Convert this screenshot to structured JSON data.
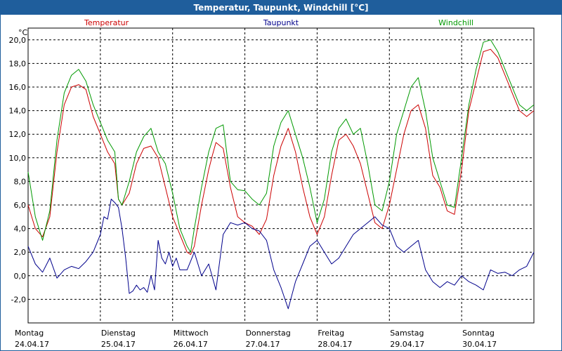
{
  "window": {
    "title": "Temperatur, Taupunkt, Windchill [°C]"
  },
  "chart_data": {
    "type": "line",
    "title": "Temperatur, Taupunkt, Windchill [°C]",
    "ylabel": "°C",
    "ylim": [
      -4,
      21
    ],
    "xlim": [
      0,
      7
    ],
    "grid": true,
    "yticks": [
      {
        "value": 20,
        "label": "20,0"
      },
      {
        "value": 18,
        "label": "18,0"
      },
      {
        "value": 16,
        "label": "16,0"
      },
      {
        "value": 14,
        "label": "14,0"
      },
      {
        "value": 12,
        "label": "12,0"
      },
      {
        "value": 10,
        "label": "10,0"
      },
      {
        "value": 8,
        "label": "8,0"
      },
      {
        "value": 6,
        "label": "6,0"
      },
      {
        "value": 4,
        "label": "4,0"
      },
      {
        "value": 2,
        "label": "2,0"
      },
      {
        "value": 0,
        "label": "0,0"
      },
      {
        "value": -2,
        "label": "-2,0"
      }
    ],
    "xticks": [
      {
        "value": 0,
        "day": "Montag",
        "date": "24.04.17"
      },
      {
        "value": 1,
        "day": "Dienstag",
        "date": "25.04.17"
      },
      {
        "value": 2,
        "day": "Mittwoch",
        "date": "26.04.17"
      },
      {
        "value": 3,
        "day": "Donnerstag",
        "date": "27.04.17"
      },
      {
        "value": 4,
        "day": "Freitag",
        "date": "28.04.17"
      },
      {
        "value": 5,
        "day": "Samstag",
        "date": "29.04.17"
      },
      {
        "value": 6,
        "day": "Sonntag",
        "date": "30.04.17"
      }
    ],
    "series": [
      {
        "name": "Temperatur",
        "color": "#cc0000",
        "x": [
          0,
          0.1,
          0.2,
          0.3,
          0.4,
          0.5,
          0.6,
          0.7,
          0.8,
          0.9,
          1.0,
          1.1,
          1.2,
          1.25,
          1.3,
          1.4,
          1.5,
          1.6,
          1.7,
          1.8,
          1.9,
          2.0,
          2.1,
          2.2,
          2.25,
          2.3,
          2.4,
          2.5,
          2.55,
          2.6,
          2.7,
          2.8,
          2.9,
          3.0,
          3.1,
          3.2,
          3.3,
          3.4,
          3.5,
          3.6,
          3.7,
          3.8,
          3.9,
          4.0,
          4.1,
          4.2,
          4.3,
          4.4,
          4.5,
          4.6,
          4.7,
          4.8,
          4.9,
          5.0,
          5.1,
          5.2,
          5.3,
          5.4,
          5.5,
          5.6,
          5.7,
          5.8,
          5.9,
          6.0,
          6.1,
          6.2,
          6.3,
          6.4,
          6.5,
          6.6,
          6.7,
          6.8,
          6.9,
          7.0
        ],
        "values": [
          6.0,
          4.0,
          3.3,
          5.0,
          10.5,
          14.5,
          16.0,
          16.2,
          15.8,
          13.5,
          12.0,
          10.5,
          9.5,
          6.5,
          6.0,
          7.0,
          9.5,
          10.8,
          11.0,
          10.0,
          7.5,
          5.0,
          3.5,
          2.0,
          1.8,
          2.5,
          6.0,
          9.0,
          10.2,
          11.3,
          10.8,
          7.5,
          5.0,
          4.5,
          4.2,
          3.5,
          4.8,
          8.5,
          11.0,
          12.5,
          10.5,
          7.5,
          5.0,
          3.5,
          5.0,
          8.5,
          11.5,
          12.0,
          11.0,
          9.5,
          7.0,
          4.5,
          4.0,
          6.0,
          9.0,
          12.0,
          14.0,
          14.5,
          12.5,
          8.5,
          7.5,
          5.5,
          5.2,
          9.0,
          14.0,
          16.5,
          19.0,
          19.2,
          18.5,
          17.0,
          15.5,
          14.0,
          13.5,
          14.0
        ]
      },
      {
        "name": "Taupunkt",
        "color": "#00008b",
        "x": [
          0,
          0.1,
          0.2,
          0.3,
          0.4,
          0.5,
          0.6,
          0.7,
          0.8,
          0.9,
          1.0,
          1.05,
          1.1,
          1.15,
          1.2,
          1.25,
          1.3,
          1.35,
          1.4,
          1.45,
          1.5,
          1.55,
          1.6,
          1.65,
          1.7,
          1.75,
          1.8,
          1.85,
          1.9,
          1.95,
          2.0,
          2.05,
          2.1,
          2.2,
          2.3,
          2.4,
          2.5,
          2.6,
          2.7,
          2.8,
          2.9,
          3.0,
          3.1,
          3.2,
          3.3,
          3.4,
          3.5,
          3.6,
          3.7,
          3.8,
          3.9,
          4.0,
          4.1,
          4.2,
          4.3,
          4.4,
          4.5,
          4.6,
          4.7,
          4.8,
          4.9,
          5.0,
          5.1,
          5.2,
          5.3,
          5.4,
          5.5,
          5.6,
          5.7,
          5.8,
          5.9,
          6.0,
          6.1,
          6.2,
          6.3,
          6.4,
          6.5,
          6.6,
          6.7,
          6.8,
          6.9,
          7.0
        ],
        "values": [
          2.5,
          1.0,
          0.3,
          1.5,
          -0.2,
          0.5,
          0.8,
          0.6,
          1.2,
          2.0,
          3.5,
          5.0,
          4.8,
          6.5,
          6.2,
          5.8,
          4.0,
          1.5,
          -1.5,
          -1.3,
          -0.8,
          -1.2,
          -1.0,
          -1.4,
          0.0,
          -1.2,
          3.0,
          1.5,
          1.0,
          2.0,
          0.8,
          1.5,
          0.5,
          0.5,
          2.0,
          0.0,
          1.0,
          -1.2,
          3.5,
          4.5,
          4.3,
          4.5,
          4.0,
          3.8,
          3.0,
          0.5,
          -1.0,
          -2.8,
          -0.5,
          1.0,
          2.5,
          3.0,
          2.0,
          1.0,
          1.5,
          2.5,
          3.5,
          4.0,
          4.5,
          5.0,
          4.3,
          4.0,
          2.5,
          2.0,
          2.5,
          3.0,
          0.5,
          -0.5,
          -1.0,
          -0.5,
          -0.8,
          0.0,
          -0.5,
          -0.8,
          -1.2,
          0.5,
          0.2,
          0.3,
          0.0,
          0.5,
          0.8,
          2.0
        ]
      },
      {
        "name": "Windchill",
        "color": "#009900",
        "x": [
          0,
          0.1,
          0.2,
          0.3,
          0.4,
          0.5,
          0.6,
          0.7,
          0.8,
          0.9,
          1.0,
          1.1,
          1.2,
          1.25,
          1.3,
          1.4,
          1.5,
          1.6,
          1.7,
          1.8,
          1.9,
          2.0,
          2.1,
          2.2,
          2.25,
          2.3,
          2.4,
          2.5,
          2.55,
          2.6,
          2.7,
          2.8,
          2.9,
          3.0,
          3.1,
          3.2,
          3.3,
          3.4,
          3.5,
          3.6,
          3.7,
          3.8,
          3.9,
          4.0,
          4.1,
          4.2,
          4.3,
          4.4,
          4.5,
          4.6,
          4.7,
          4.8,
          4.9,
          5.0,
          5.1,
          5.2,
          5.3,
          5.4,
          5.5,
          5.6,
          5.7,
          5.8,
          5.9,
          6.0,
          6.1,
          6.2,
          6.3,
          6.4,
          6.5,
          6.6,
          6.7,
          6.8,
          6.9,
          7.0
        ],
        "values": [
          8.8,
          5.0,
          3.0,
          5.5,
          11.5,
          15.5,
          17.0,
          17.5,
          16.5,
          14.5,
          13.0,
          11.5,
          10.5,
          6.5,
          6.0,
          8.0,
          10.5,
          11.8,
          12.5,
          10.5,
          9.5,
          7.0,
          4.0,
          2.5,
          2.0,
          4.0,
          7.5,
          10.5,
          11.5,
          12.5,
          12.8,
          8.0,
          7.3,
          7.2,
          6.5,
          6.0,
          7.0,
          11.0,
          13.0,
          14.0,
          12.0,
          10.0,
          7.5,
          4.5,
          6.5,
          10.5,
          12.5,
          13.3,
          12.0,
          12.5,
          9.5,
          6.0,
          5.5,
          8.0,
          12.0,
          14.0,
          16.0,
          16.8,
          14.0,
          10.0,
          8.0,
          6.0,
          5.8,
          10.0,
          14.5,
          17.5,
          19.8,
          20.0,
          19.0,
          17.5,
          16.0,
          14.5,
          14.0,
          14.5
        ]
      }
    ]
  }
}
